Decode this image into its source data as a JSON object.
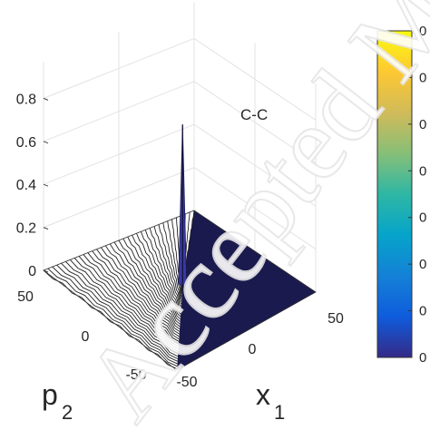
{
  "chart_data": {
    "type": "surface",
    "annotation": "C-C",
    "xlabel": "p",
    "xlabel_sub": "2",
    "ylabel": "x",
    "ylabel_sub": "1",
    "zlim": [
      0,
      0.8
    ],
    "z_ticks": [
      "0",
      "0.2",
      "0.4",
      "0.6",
      "0.8"
    ],
    "p2_ticks": [
      "50",
      "0",
      "-50"
    ],
    "x1_ticks": [
      "50",
      "0",
      "-50"
    ],
    "p2_range": [
      -50,
      50
    ],
    "x1_range": [
      -50,
      50
    ],
    "peak": {
      "p2": 0,
      "x1": 0,
      "z": 0.75
    },
    "colorbar": {
      "colormap": "parula",
      "colors": [
        "#352a87",
        "#0f5cdd",
        "#1481d6",
        "#06a4ca",
        "#2eb7a4",
        "#87bf77",
        "#d1bb59",
        "#fec832",
        "#f9fb0e"
      ],
      "tick_labels": [
        "0",
        "0",
        "0",
        "0",
        "0",
        "0",
        "0",
        "0"
      ]
    },
    "surface_color": "#1a1a4e",
    "mesh_color": "#222222",
    "grid": true
  },
  "watermark": "Accepted Manuscript"
}
